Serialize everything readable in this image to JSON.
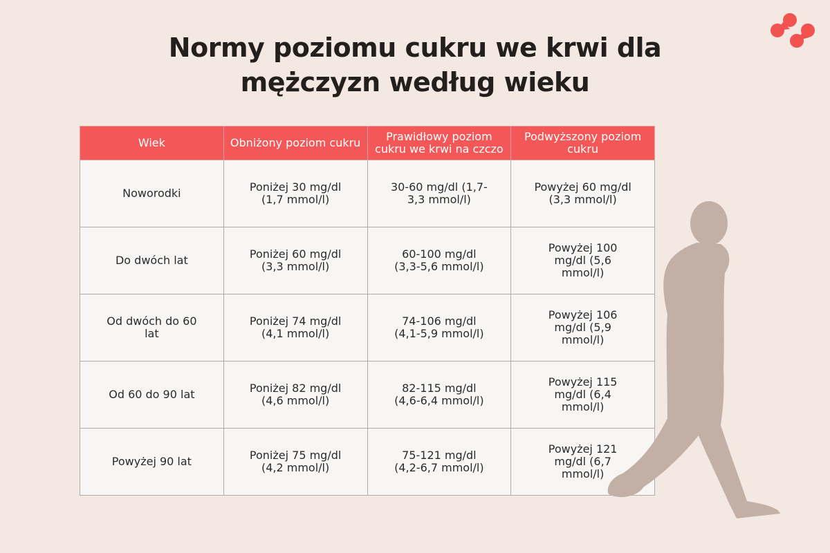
{
  "title": {
    "line1": "Normy poziomu cukru we krwi dla",
    "line2": "mężczyzn według wieku"
  },
  "colors": {
    "header": "#f45757",
    "background": "#f3e8e2",
    "silhouette": "#c2b0a7",
    "logo": "#f25350"
  },
  "icons": {
    "logo": "four-drops-logo",
    "figure": "walking-man-silhouette"
  },
  "table": {
    "headers": [
      "Wiek",
      "Obniżony poziom cukru",
      "Prawidłowy poziom cukru we krwi na czczo",
      "Podwyższony poziom cukru"
    ],
    "rows": [
      [
        "Noworodki",
        "Poniżej 30 mg/dl (1,7 mmol/l)",
        "30-60 mg/dl (1,7-3,3 mmol/l)",
        "Powyżej 60 mg/dl (3,3 mmol/l)"
      ],
      [
        "Do dwóch lat",
        "Poniżej 60 mg/dl (3,3 mmol/l)",
        "60-100 mg/dl (3,3-5,6 mmol/l)",
        "Powyżej 100 mg/dl (5,6 mmol/l)"
      ],
      [
        "Od dwóch do 60 lat",
        "Poniżej 74 mg/dl (4,1 mmol/l)",
        "74-106 mg/dl (4,1-5,9 mmol/l)",
        "Powyżej 106 mg/dl (5,9 mmol/l)"
      ],
      [
        "Od 60 do 90 lat",
        "Poniżej 82 mg/dl (4,6 mmol/l)",
        "82-115 mg/dl (4,6-6,4 mmol/l)",
        "Powyżej 115 mg/dl (6,4 mmol/l)"
      ],
      [
        "Powyżej 90 lat",
        "Poniżej 75 mg/dl (4,2 mmol/l)",
        "75-121 mg/dl (4,2-6,7 mmol/l)",
        "Powyżej 121 mg/dl (6,7 mmol/l)"
      ]
    ]
  }
}
